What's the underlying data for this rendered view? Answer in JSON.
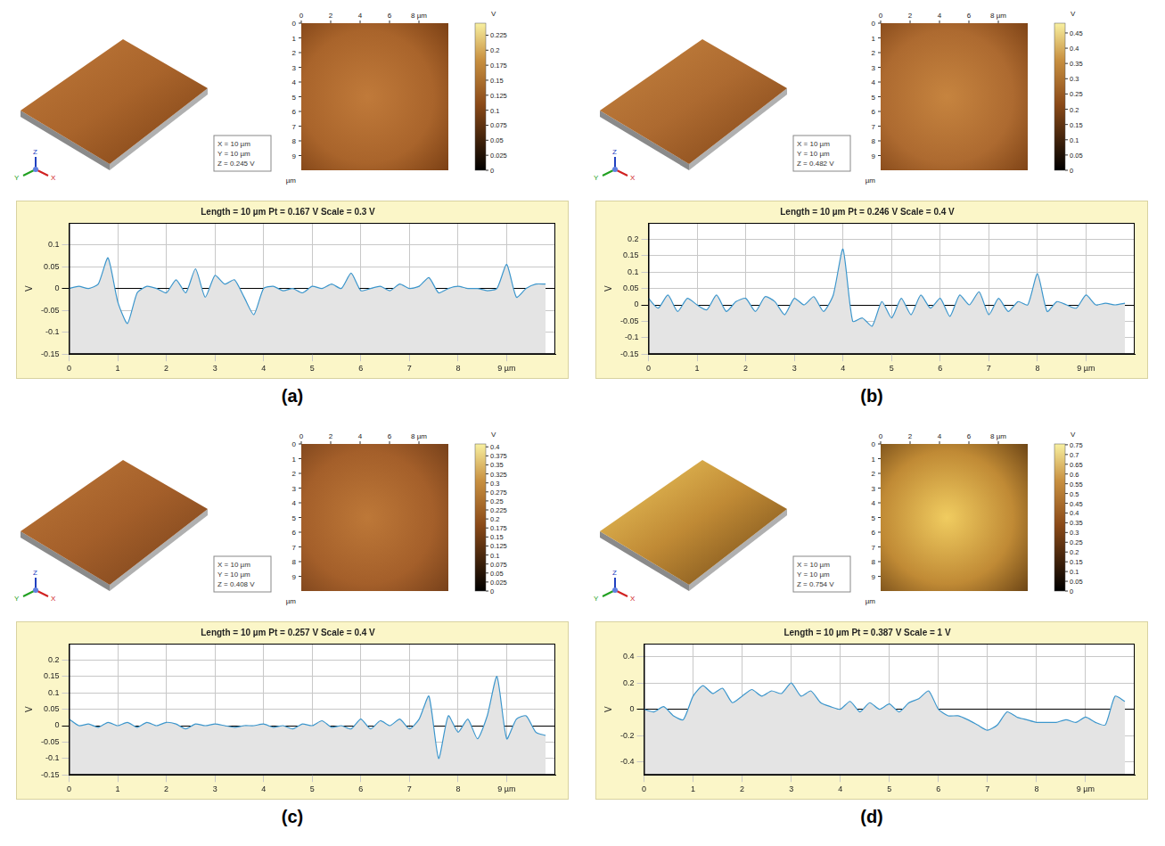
{
  "chart_data": [
    {
      "type": "line",
      "title": "Length = 10 µm Pt = 0.167 V Scale = 0.3 V",
      "ylabel": "V",
      "color": "#3c96cc",
      "grid": true,
      "x": [
        0,
        0.2,
        0.4,
        0.6,
        0.8,
        1,
        1.2,
        1.4,
        1.6,
        1.8,
        2,
        2.2,
        2.4,
        2.6,
        2.8,
        3,
        3.2,
        3.4,
        3.6,
        3.8,
        4,
        4.2,
        4.4,
        4.6,
        4.8,
        5,
        5.2,
        5.4,
        5.6,
        5.8,
        6,
        6.2,
        6.4,
        6.6,
        6.8,
        7,
        7.2,
        7.4,
        7.6,
        7.8,
        8,
        8.2,
        8.4,
        8.6,
        8.8,
        9,
        9.2,
        9.4,
        9.6,
        9.8
      ],
      "values": [
        0,
        0.005,
        0,
        0.01,
        0.07,
        -0.03,
        -0.08,
        -0.01,
        0.005,
        0,
        -0.01,
        0.02,
        -0.01,
        0.045,
        -0.02,
        0.03,
        0.01,
        0.02,
        -0.02,
        -0.06,
        0,
        0.005,
        -0.005,
        0,
        -0.01,
        0.005,
        0,
        0.01,
        0,
        0.035,
        -0.005,
        0,
        0.005,
        -0.005,
        0.01,
        0,
        0.005,
        0.025,
        -0.01,
        0,
        0.005,
        0,
        0,
        -0.005,
        0,
        0.055,
        -0.02,
        0,
        0.01,
        0.01
      ],
      "xlim": [
        0,
        10
      ],
      "xticks": [
        0,
        1,
        2,
        3,
        4,
        5,
        6,
        7,
        8,
        {
          "value": 9,
          "label": "9 µm"
        }
      ],
      "ylim": [
        -0.15,
        0.15
      ],
      "yticks": [
        -0.15,
        -0.1,
        -0.05,
        0,
        0.05,
        0.1
      ]
    },
    {
      "type": "line",
      "title": "Length = 10 µm Pt = 0.246 V Scale = 0.4 V",
      "ylabel": "V",
      "color": "#3c96cc",
      "grid": true,
      "x": [
        0,
        0.2,
        0.4,
        0.6,
        0.8,
        1,
        1.2,
        1.4,
        1.6,
        1.8,
        2,
        2.2,
        2.4,
        2.6,
        2.8,
        3,
        3.2,
        3.4,
        3.6,
        3.8,
        4,
        4.2,
        4.4,
        4.6,
        4.8,
        5,
        5.2,
        5.4,
        5.6,
        5.8,
        6,
        6.2,
        6.4,
        6.6,
        6.8,
        7,
        7.2,
        7.4,
        7.6,
        7.8,
        8,
        8.2,
        8.4,
        8.6,
        8.8,
        9,
        9.2,
        9.4,
        9.6,
        9.8
      ],
      "values": [
        0.02,
        -0.01,
        0.03,
        -0.02,
        0.02,
        0,
        -0.015,
        0.03,
        -0.02,
        0.01,
        0.02,
        -0.02,
        0.025,
        0.01,
        -0.03,
        0.02,
        0,
        0.025,
        -0.02,
        0.03,
        0.17,
        -0.05,
        -0.04,
        -0.065,
        0.01,
        -0.04,
        0.02,
        -0.03,
        0.03,
        -0.01,
        0.02,
        -0.035,
        0.03,
        0,
        0.04,
        -0.03,
        0.02,
        -0.02,
        0.01,
        0,
        0.095,
        -0.02,
        0.01,
        0,
        -0.01,
        0.03,
        0,
        0.005,
        0,
        0.005
      ],
      "xlim": [
        0,
        10
      ],
      "xticks": [
        0,
        1,
        2,
        3,
        4,
        5,
        6,
        7,
        8,
        {
          "value": 9,
          "label": "9 µm"
        }
      ],
      "ylim": [
        -0.15,
        0.25
      ],
      "yticks": [
        -0.15,
        -0.1,
        -0.05,
        0,
        0.05,
        0.1,
        0.15,
        0.2
      ]
    },
    {
      "type": "line",
      "title": "Length = 10 µm Pt = 0.257 V Scale = 0.4 V",
      "ylabel": "V",
      "color": "#3c96cc",
      "grid": true,
      "x": [
        0,
        0.2,
        0.4,
        0.6,
        0.8,
        1,
        1.2,
        1.4,
        1.6,
        1.8,
        2,
        2.2,
        2.4,
        2.6,
        2.8,
        3,
        3.2,
        3.4,
        3.6,
        3.8,
        4,
        4.2,
        4.4,
        4.6,
        4.8,
        5,
        5.2,
        5.4,
        5.6,
        5.8,
        6,
        6.2,
        6.4,
        6.6,
        6.8,
        7,
        7.2,
        7.4,
        7.6,
        7.8,
        8,
        8.2,
        8.4,
        8.6,
        8.8,
        9,
        9.2,
        9.4,
        9.6,
        9.8
      ],
      "values": [
        0.02,
        0,
        0.005,
        -0.005,
        0.01,
        0,
        0.01,
        -0.005,
        0.01,
        0,
        0.01,
        0.005,
        -0.01,
        0.005,
        0,
        0.005,
        0,
        -0.005,
        0,
        0,
        0.005,
        -0.005,
        0,
        -0.01,
        0.005,
        0,
        0.015,
        -0.005,
        0,
        -0.01,
        0.02,
        -0.01,
        0.015,
        0,
        0.02,
        -0.01,
        0.02,
        0.09,
        -0.1,
        0.03,
        -0.02,
        0.02,
        -0.04,
        0.03,
        0.15,
        -0.04,
        0.02,
        0.03,
        -0.02,
        -0.03
      ],
      "xlim": [
        0,
        10
      ],
      "xticks": [
        0,
        1,
        2,
        3,
        4,
        5,
        6,
        7,
        8,
        {
          "value": 9,
          "label": "9 µm"
        }
      ],
      "ylim": [
        -0.15,
        0.25
      ],
      "yticks": [
        -0.15,
        -0.1,
        -0.05,
        0,
        0.05,
        0.1,
        0.15,
        0.2
      ]
    },
    {
      "type": "line",
      "title": "Length = 10 µm Pt = 0.387 V Scale = 1 V",
      "ylabel": "V",
      "color": "#3c96cc",
      "grid": true,
      "x": [
        0,
        0.2,
        0.4,
        0.6,
        0.8,
        1,
        1.2,
        1.4,
        1.6,
        1.8,
        2,
        2.2,
        2.4,
        2.6,
        2.8,
        3,
        3.2,
        3.4,
        3.6,
        3.8,
        4,
        4.2,
        4.4,
        4.6,
        4.8,
        5,
        5.2,
        5.4,
        5.6,
        5.8,
        6,
        6.2,
        6.4,
        6.6,
        6.8,
        7,
        7.2,
        7.4,
        7.6,
        7.8,
        8,
        8.2,
        8.4,
        8.6,
        8.8,
        9,
        9.2,
        9.4,
        9.6,
        9.8
      ],
      "values": [
        0,
        -0.02,
        0.02,
        -0.05,
        -0.08,
        0.1,
        0.18,
        0.12,
        0.16,
        0.05,
        0.1,
        0.15,
        0.1,
        0.14,
        0.12,
        0.2,
        0.1,
        0.14,
        0.05,
        0.02,
        0,
        0.06,
        -0.02,
        0.05,
        0,
        0.04,
        -0.02,
        0.05,
        0.08,
        0.14,
        0,
        -0.05,
        -0.05,
        -0.08,
        -0.12,
        -0.16,
        -0.12,
        -0.02,
        -0.06,
        -0.08,
        -0.1,
        -0.1,
        -0.1,
        -0.08,
        -0.1,
        -0.06,
        -0.1,
        -0.12,
        0.1,
        0.06
      ],
      "xlim": [
        0,
        10
      ],
      "xticks": [
        0,
        1,
        2,
        3,
        4,
        5,
        6,
        7,
        8,
        {
          "value": 9,
          "label": "9 µm"
        }
      ],
      "ylim": [
        -0.5,
        0.5
      ],
      "yticks": [
        -0.4,
        -0.2,
        0,
        0.2,
        0.4
      ]
    }
  ],
  "panels": [
    {
      "label": "(a)",
      "box": [
        "X = 10 µm",
        "Y = 10 µm",
        "Z = 0.245 V"
      ],
      "axis_labels": [
        "X",
        "Y",
        "Z"
      ],
      "map": {
        "xlim": [
          0,
          10
        ],
        "ylim": [
          0,
          10
        ],
        "xticks": [
          0,
          2,
          4,
          6,
          {
            "value": 8,
            "label": "8 µm"
          }
        ],
        "yticks": [
          0,
          1,
          2,
          3,
          4,
          5,
          6,
          7,
          8,
          9
        ],
        "unit": "µm"
      },
      "colorbar": {
        "label": "V",
        "range": [
          0,
          0.245
        ],
        "ticks": [
          0,
          0.025,
          0.05,
          0.075,
          0.1,
          0.125,
          0.15,
          0.175,
          0.2,
          0.225
        ]
      }
    },
    {
      "label": "(b)",
      "box": [
        "X = 10 µm",
        "Y = 10 µm",
        "Z = 0.482 V"
      ],
      "axis_labels": [
        "X",
        "Y",
        "Z"
      ],
      "map": {
        "xlim": [
          0,
          10
        ],
        "ylim": [
          0,
          10
        ],
        "xticks": [
          0,
          2,
          4,
          6,
          {
            "value": 8,
            "label": "8 µm"
          }
        ],
        "yticks": [
          0,
          1,
          2,
          3,
          4,
          5,
          6,
          7,
          8,
          9
        ],
        "unit": "µm"
      },
      "colorbar": {
        "label": "V",
        "range": [
          0,
          0.482
        ],
        "ticks": [
          0,
          0.05,
          0.1,
          0.15,
          0.2,
          0.25,
          0.3,
          0.35,
          0.4,
          0.45
        ]
      }
    },
    {
      "label": "(c)",
      "box": [
        "X = 10 µm",
        "Y = 10 µm",
        "Z = 0.408 V"
      ],
      "axis_labels": [
        "X",
        "Y",
        "Z"
      ],
      "map": {
        "xlim": [
          0,
          10
        ],
        "ylim": [
          0,
          10
        ],
        "xticks": [
          0,
          2,
          4,
          6,
          {
            "value": 8,
            "label": "8 µm"
          }
        ],
        "yticks": [
          0,
          1,
          2,
          3,
          4,
          5,
          6,
          7,
          8,
          9
        ],
        "unit": "µm"
      },
      "colorbar": {
        "label": "V",
        "range": [
          0,
          0.408
        ],
        "ticks": [
          0,
          0.025,
          0.05,
          0.075,
          0.1,
          0.125,
          0.15,
          0.175,
          0.2,
          0.225,
          0.25,
          0.275,
          0.3,
          0.325,
          0.35,
          0.375,
          0.4
        ]
      }
    },
    {
      "label": "(d)",
      "box": [
        "X = 10 µm",
        "Y = 10 µm",
        "Z = 0.754 V"
      ],
      "axis_labels": [
        "X",
        "Y",
        "Z"
      ],
      "map": {
        "xlim": [
          0,
          10
        ],
        "ylim": [
          0,
          10
        ],
        "xticks": [
          0,
          2,
          4,
          6,
          {
            "value": 8,
            "label": "8 µm"
          }
        ],
        "yticks": [
          0,
          1,
          2,
          3,
          4,
          5,
          6,
          7,
          8,
          9
        ],
        "unit": "µm"
      },
      "colorbar": {
        "label": "V",
        "range": [
          0,
          0.754
        ],
        "ticks": [
          0,
          0.05,
          0.1,
          0.15,
          0.2,
          0.25,
          0.3,
          0.35,
          0.4,
          0.45,
          0.5,
          0.55,
          0.6,
          0.65,
          0.7,
          0.75
        ]
      }
    }
  ]
}
